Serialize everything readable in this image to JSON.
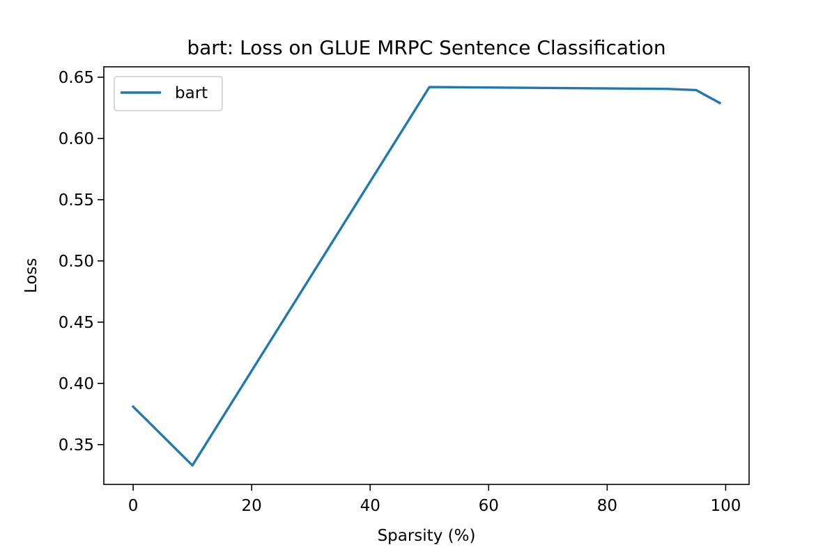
{
  "chart_data": {
    "type": "line",
    "title": "bart: Loss on GLUE MRPC Sentence Classification",
    "xlabel": "Sparsity (%)",
    "ylabel": "Loss",
    "xlim": [
      -4.95,
      103.95
    ],
    "ylim": [
      0.3175,
      0.6585
    ],
    "xticks": [
      0,
      20,
      40,
      60,
      80,
      100
    ],
    "xtick_labels": [
      "0",
      "20",
      "40",
      "60",
      "80",
      "100"
    ],
    "yticks": [
      0.35,
      0.4,
      0.45,
      0.5,
      0.55,
      0.6,
      0.65
    ],
    "ytick_labels": [
      "0.35",
      "0.40",
      "0.45",
      "0.50",
      "0.55",
      "0.60",
      "0.65"
    ],
    "grid": false,
    "legend_position": "upper left",
    "series": [
      {
        "name": "bart",
        "color": "#1f77b4",
        "x": [
          0,
          10,
          50,
          90,
          95,
          99
        ],
        "y": [
          0.381,
          0.333,
          0.642,
          0.6405,
          0.6395,
          0.629
        ]
      }
    ]
  }
}
